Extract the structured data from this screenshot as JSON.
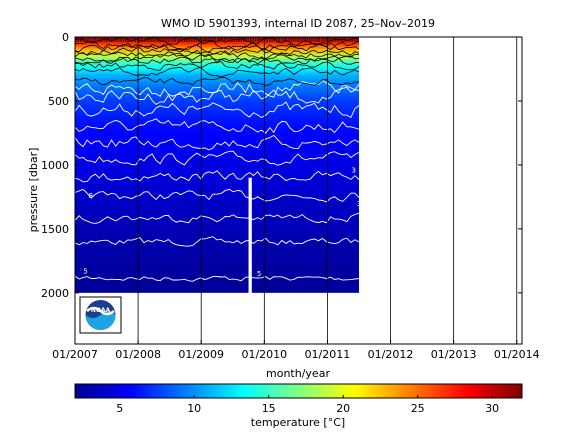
{
  "chart_data": {
    "type": "heatmap",
    "title": "WMO ID 5901393, internal ID 2087, 25–Nov–2019",
    "xlabel": "month/year",
    "ylabel": "pressure [dbar]",
    "x_ticks": [
      "01/2007",
      "01/2008",
      "01/2009",
      "01/2010",
      "01/2011",
      "01/2012",
      "01/2013",
      "01/2014"
    ],
    "y_ticks": [
      0,
      500,
      1000,
      1500,
      2000
    ],
    "xlim": [
      "2007-01",
      "2014-02"
    ],
    "ylim": [
      0,
      2400
    ],
    "y_reversed": true,
    "data_extent": {
      "x_start": "2007-01",
      "x_end": "2011-07",
      "pressure_max": 2000
    },
    "data_gap": {
      "x_start": "2009-10",
      "x_end": "2009-11"
    },
    "vertical_gridlines": [
      "2008-01",
      "2009-01",
      "2010-01",
      "2011-01",
      "2012-01",
      "2013-01",
      "2014-01"
    ],
    "temperature_profile": [
      {
        "pressure": 0,
        "temperature": 30
      },
      {
        "pressure": 50,
        "temperature": 27
      },
      {
        "pressure": 100,
        "temperature": 23
      },
      {
        "pressure": 150,
        "temperature": 19
      },
      {
        "pressure": 200,
        "temperature": 15
      },
      {
        "pressure": 300,
        "temperature": 11
      },
      {
        "pressure": 400,
        "temperature": 9
      },
      {
        "pressure": 500,
        "temperature": 7.5
      },
      {
        "pressure": 700,
        "temperature": 6
      },
      {
        "pressure": 1000,
        "temperature": 4.8
      },
      {
        "pressure": 1300,
        "temperature": 3.8
      },
      {
        "pressure": 1600,
        "temperature": 3
      },
      {
        "pressure": 2000,
        "temperature": 2.3
      }
    ],
    "contour_levels": [
      2.5,
      3,
      3.5,
      4,
      4.5,
      5,
      5.5,
      6,
      7,
      8,
      9,
      10,
      12,
      14,
      16,
      18,
      20,
      22,
      24,
      26,
      28
    ],
    "contour_labels": [
      {
        "text": "3",
        "date": "2011-06",
        "pressure": 1060
      },
      {
        "text": "5",
        "date": "2007-03",
        "pressure": 1850
      },
      {
        "text": "5",
        "date": "2009-12",
        "pressure": 1870
      },
      {
        "text": "8",
        "date": "2007-04",
        "pressure": 1260
      },
      {
        "text": "3",
        "date": "2011-07",
        "pressure": 1320
      }
    ],
    "colorbar": {
      "label": "temperature [°C]",
      "range": [
        2,
        32
      ],
      "ticks": [
        5,
        10,
        15,
        20,
        25,
        30
      ],
      "colormap": "jet"
    },
    "logo": "noaa-logo"
  }
}
